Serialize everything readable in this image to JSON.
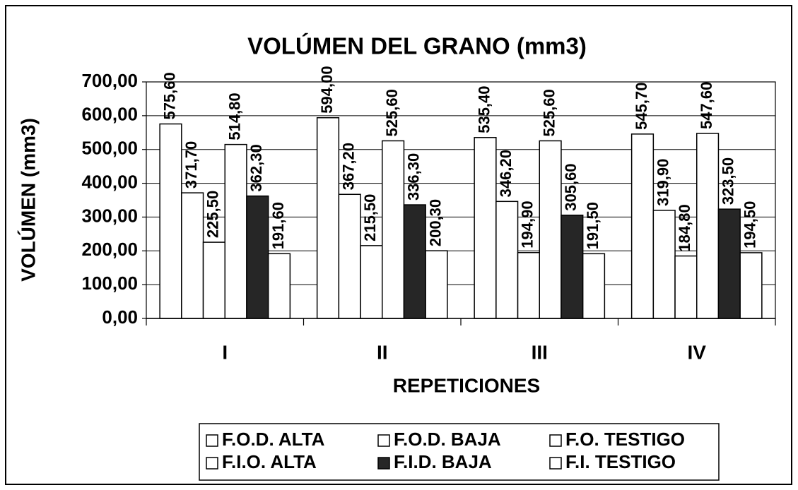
{
  "chart_data": {
    "type": "bar",
    "title": "VOLÚMEN DEL GRANO (mm3)",
    "x_label": "REPETICIONES",
    "y_label": "VOLÚMEN (mm3)",
    "categories": [
      "I",
      "II",
      "III",
      "IV"
    ],
    "series": [
      {
        "name": "F.O.D. ALTA",
        "color": "#ffffff",
        "values": [
          575.6,
          594.0,
          535.4,
          545.7
        ],
        "value_labels": [
          "575,60",
          "594,00",
          "535,40",
          "545,70"
        ]
      },
      {
        "name": "F.O.D. BAJA",
        "color": "#ffffff",
        "values": [
          371.7,
          367.2,
          346.2,
          319.9
        ],
        "value_labels": [
          "371,70",
          "367,20",
          "346,20",
          "319,90"
        ]
      },
      {
        "name": "F.O. TESTIGO",
        "color": "#ffffff",
        "values": [
          225.5,
          215.5,
          194.9,
          184.8
        ],
        "value_labels": [
          "225,50",
          "215,50",
          "194,90",
          "184,80"
        ]
      },
      {
        "name": "F.I.O. ALTA",
        "color": "#ffffff",
        "values": [
          514.8,
          525.6,
          525.6,
          547.6
        ],
        "value_labels": [
          "514,80",
          "525,60",
          "525,60",
          "547,60"
        ]
      },
      {
        "name": "F.I.D. BAJA",
        "color": "#262626",
        "values": [
          362.3,
          336.3,
          305.6,
          323.5
        ],
        "value_labels": [
          "362,30",
          "336,30",
          "305,60",
          "323,50"
        ]
      },
      {
        "name": "F.I. TESTIGO",
        "color": "#ffffff",
        "values": [
          191.6,
          200.3,
          191.5,
          194.5
        ],
        "value_labels": [
          "191,60",
          "200,30",
          "191,50",
          "194,50"
        ]
      }
    ],
    "ylim": [
      0,
      700
    ],
    "yticks": [
      {
        "value": 0,
        "label": "0,00"
      },
      {
        "value": 100,
        "label": "100,00"
      },
      {
        "value": 200,
        "label": "200,00"
      },
      {
        "value": 300,
        "label": "300,00"
      },
      {
        "value": 400,
        "label": "400,00"
      },
      {
        "value": 500,
        "label": "500,00"
      },
      {
        "value": 600,
        "label": "600,00"
      },
      {
        "value": 700,
        "label": "700,00"
      }
    ],
    "grid": true
  }
}
